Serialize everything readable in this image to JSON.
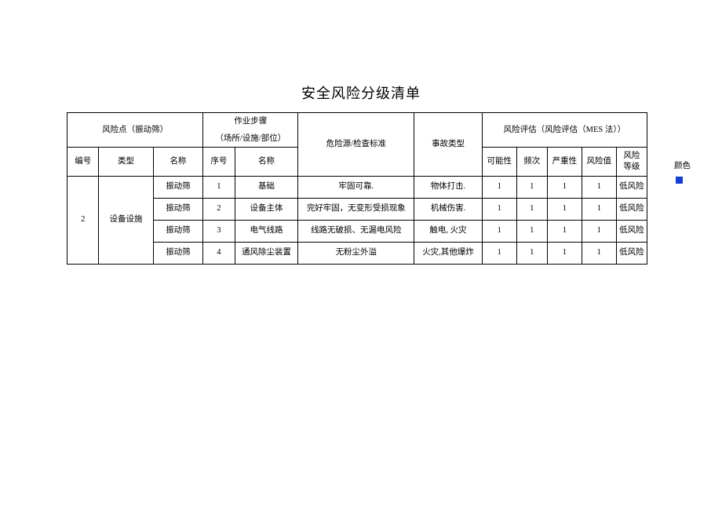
{
  "title": "安全风险分级清单",
  "headers": {
    "risk_point_group": "风险点（振动筛）",
    "work_step_group": "作业步骤",
    "work_step_sub": "（场所/设施/部位）",
    "hazard_source": "危险源/检查标准",
    "accident_type": "事故类型",
    "risk_eval_group": "风险评估（风险评估（MES 法））",
    "col_num": "编号",
    "col_type": "类型",
    "col_name": "名称",
    "col_seq": "序号",
    "col_step_name": "名称",
    "col_possibility": "可能性",
    "col_frequency": "频次",
    "col_severity": "严重性",
    "col_risk_value": "风险值",
    "col_risk_level": "风险",
    "col_risk_level2": "等级"
  },
  "body": {
    "id": "2",
    "type": "设备设施",
    "rows": [
      {
        "name": "振动筛",
        "seq": "1",
        "step_name": "基础",
        "hazard": "牢固可靠.",
        "accident": "物体打击.",
        "possibility": "1",
        "frequency": "1",
        "severity": "1",
        "risk_value": "1",
        "risk_level": "低风险"
      },
      {
        "name": "振动筛",
        "seq": "2",
        "step_name": "设备主体",
        "hazard": "完好牢固，无变形受损现象",
        "accident": "机械伤害.",
        "possibility": "1",
        "frequency": "1",
        "severity": "1",
        "risk_value": "1",
        "risk_level": "低风险"
      },
      {
        "name": "振动筛",
        "seq": "3",
        "step_name": "电气线路",
        "hazard": "线路无破损、无漏电风险",
        "accident": "触电, 火灾",
        "possibility": "1",
        "frequency": "1",
        "severity": "1",
        "risk_value": "1",
        "risk_level": "低风险"
      },
      {
        "name": "振动筛",
        "seq": "4",
        "step_name": "通风除尘装置",
        "hazard": "无粉尘外溢",
        "accident": "火灾,其他爆炸",
        "possibility": "1",
        "frequency": "1",
        "severity": "1",
        "risk_value": "1",
        "risk_level": "低风险"
      }
    ]
  },
  "side": {
    "color_label": "颜色",
    "swatch_color": "#1040d8"
  },
  "column_widths": {
    "num": 35,
    "type": 60,
    "name": 55,
    "seq": 35,
    "step_name": 70,
    "hazard": 128,
    "accident": 75,
    "possibility": 38,
    "frequency": 34,
    "severity": 38,
    "risk_value": 38,
    "risk_level": 34
  }
}
